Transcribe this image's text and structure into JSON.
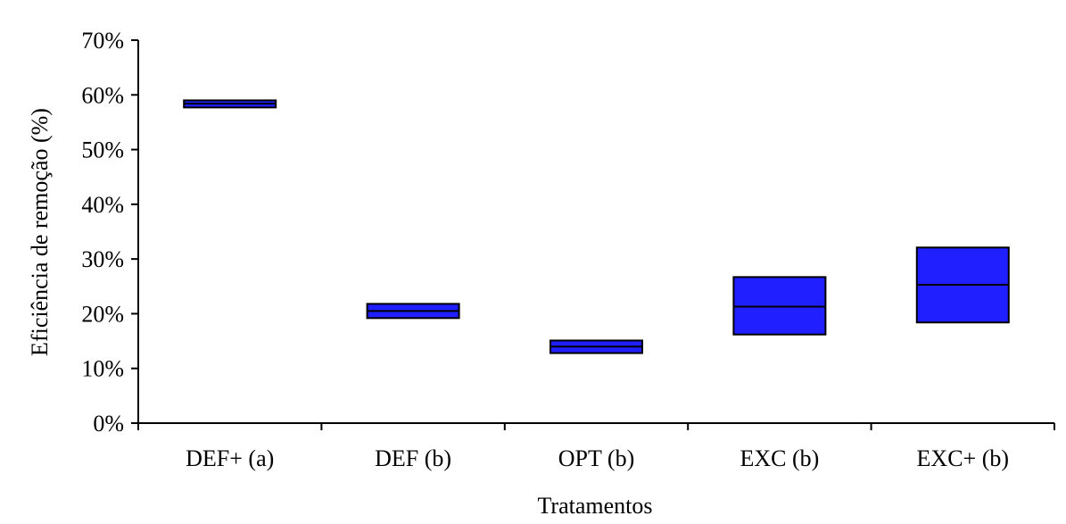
{
  "chart_data": {
    "type": "box",
    "title": "",
    "xlabel": "Tratamentos",
    "ylabel": "Eficiência de remoção (%)",
    "ylim": [
      0,
      0.7
    ],
    "y_ticks": [
      "0%",
      "10%",
      "20%",
      "30%",
      "40%",
      "50%",
      "60%",
      "70%"
    ],
    "categories": [
      "DEF+ (a)",
      "DEF (b)",
      "OPT (b)",
      "EXC (b)",
      "EXC+ (b)"
    ],
    "boxes": [
      {
        "low": 0.577,
        "median": 0.584,
        "high": 0.59
      },
      {
        "low": 0.192,
        "median": 0.205,
        "high": 0.218
      },
      {
        "low": 0.128,
        "median": 0.14,
        "high": 0.151
      },
      {
        "low": 0.162,
        "median": 0.213,
        "high": 0.267
      },
      {
        "low": 0.184,
        "median": 0.253,
        "high": 0.321
      }
    ],
    "colors": {
      "box_fill": "#1f1fff",
      "line": "#000000"
    },
    "grid": false,
    "legend": "none"
  }
}
